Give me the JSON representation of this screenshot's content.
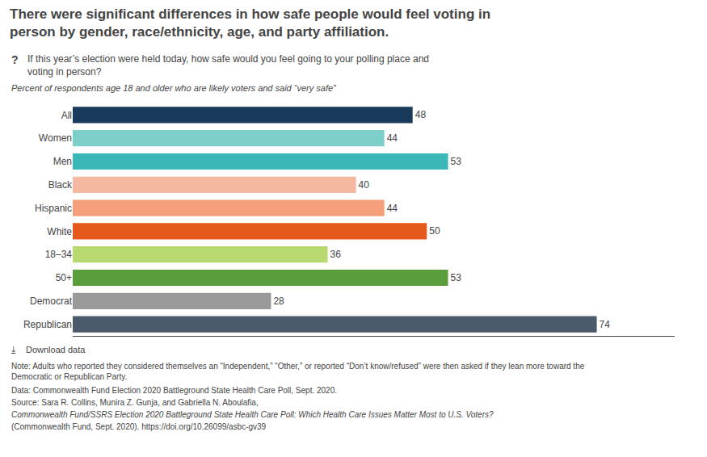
{
  "chart_data": {
    "type": "bar",
    "orientation": "horizontal",
    "title": "There were significant differences in how safe people would feel voting in\nperson by gender, race/ethnicity, age, and party affiliation.",
    "subtitle": "Percent of respondents age 18 and older who are likely voters and said “very safe”",
    "categories": [
      "All",
      "Women",
      "Men",
      "Black",
      "Hispanic",
      "White",
      "18–34",
      "50+",
      "Democrat",
      "Republican"
    ],
    "values": [
      48,
      44,
      53,
      40,
      44,
      50,
      36,
      53,
      28,
      74
    ],
    "colors": [
      "#1a3a5c",
      "#7ececa",
      "#3ab8b8",
      "#f5b8a0",
      "#f5a07a",
      "#e55a1c",
      "#b8d870",
      "#5a9e3c",
      "#9a9a9a",
      "#4a5a6a"
    ],
    "xlim": [
      0,
      85
    ],
    "data_labels": true,
    "tick_labels": "y",
    "grid": false,
    "annotations": [
      "?",
      "If this year’s election were held today, how safe would you feel going to your polling place and\nvoting in person?",
      "⤓",
      "Download data",
      "Note: Adults who reported they considered themselves an “Independent,” “Other,” or reported “Don’t know/refused” were then asked if they lean more toward the\nDemocratic or Republican Party.",
      "Data: Commonwealth Fund Election 2020 Battleground State Health Care Poll, Sept. 2020.",
      "Source: Sara R. Collins, Munira Z. Gunja, and Gabriella N. Aboulafia, ",
      "Commonwealth Fund/SSRS Election 2020 Battleground State Health Care Poll: Which Health Care Issues Matter Most to U.S. Voters?",
      "(Commonwealth Fund, Sept. 2020). ",
      "https://doi.org/10.26099/asbc-gv39"
    ]
  }
}
